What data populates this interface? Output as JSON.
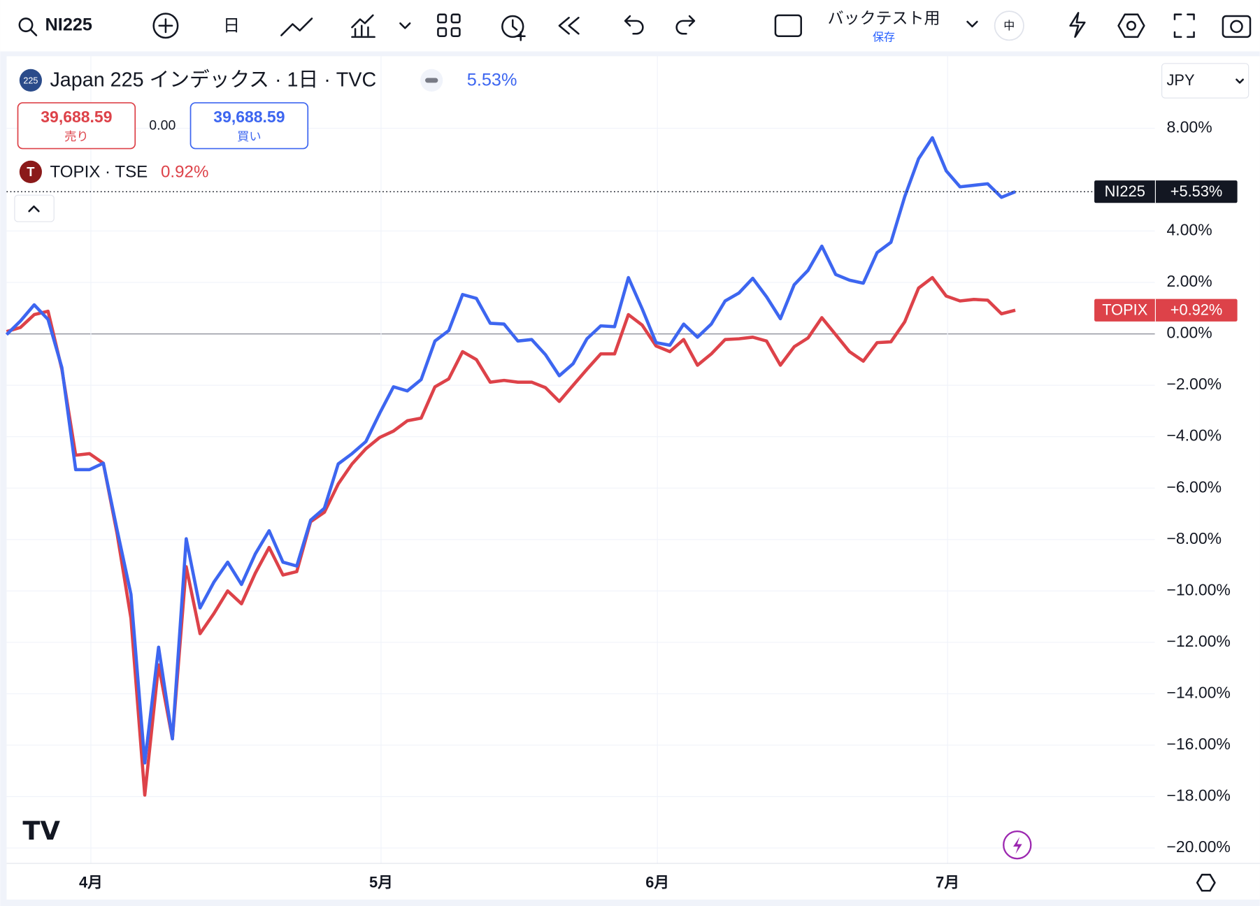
{
  "toolbar": {
    "symbol": "NI225",
    "interval": "日",
    "layout_name": "バックテスト用",
    "layout_sub": "保存",
    "badge": "中"
  },
  "legend": {
    "badge": "225",
    "main_title": "Japan 225 インデックス · 1日 · TVC",
    "main_change": "5.53%",
    "sell_price": "39,688.59",
    "sell_label": "売り",
    "spread": "0.00",
    "buy_price": "39,688.59",
    "buy_label": "買い",
    "compare_badge": "T",
    "compare_title": "TOPIX · TSE",
    "compare_change": "0.92%"
  },
  "currency": "JPY",
  "price_tags": [
    {
      "name": "NI225",
      "value": "+5.53%"
    },
    {
      "name": "TOPIX",
      "value": "+0.92%"
    }
  ],
  "chart_data": {
    "type": "line",
    "x": [
      0,
      1,
      2,
      3,
      4,
      5,
      6,
      7,
      8,
      9,
      10,
      11,
      12,
      13,
      14,
      15,
      16,
      17,
      18,
      19,
      20,
      21,
      22,
      23,
      24,
      25,
      26,
      27,
      28,
      29,
      30,
      31,
      32,
      33,
      34,
      35,
      36,
      37,
      38,
      39,
      40,
      41,
      42,
      43,
      44,
      45,
      46,
      47,
      48,
      49,
      50,
      51,
      52,
      53,
      54,
      55,
      56,
      57,
      58,
      59,
      60,
      61,
      62,
      63,
      64,
      65,
      66,
      67,
      68,
      69,
      70,
      71,
      72,
      73
    ],
    "series": [
      {
        "name": "NI225",
        "color": "#3d66f0",
        "values": [
          -0.03,
          0.5,
          1.13,
          0.56,
          -1.31,
          -5.28,
          -5.28,
          -5.03,
          -7.63,
          -10.13,
          -16.69,
          -12.19,
          -15.75,
          -7.97,
          -10.66,
          -9.66,
          -8.88,
          -9.75,
          -8.56,
          -7.66,
          -8.88,
          -9.03,
          -7.25,
          -6.78,
          -5.06,
          -4.66,
          -4.19,
          -3.09,
          -2.06,
          -2.22,
          -1.78,
          -0.28,
          0.13,
          1.53,
          1.38,
          0.41,
          0.38,
          -0.28,
          -0.22,
          -0.81,
          -1.63,
          -1.16,
          -0.19,
          0.31,
          0.28,
          2.19,
          0.97,
          -0.34,
          -0.44,
          0.38,
          -0.13,
          0.38,
          1.28,
          1.59,
          2.16,
          1.44,
          0.59,
          1.91,
          2.47,
          3.41,
          2.31,
          2.09,
          1.97,
          3.16,
          3.56,
          5.34,
          6.81,
          7.63,
          6.34,
          5.72,
          5.78,
          5.84,
          5.31,
          5.53
        ]
      },
      {
        "name": "TOPIX",
        "color": "#dd4249",
        "values": [
          0.09,
          0.25,
          0.75,
          0.88,
          -1.38,
          -4.72,
          -4.66,
          -5.03,
          -7.78,
          -11.06,
          -17.94,
          -12.88,
          -15.75,
          -9.06,
          -11.66,
          -10.88,
          -10.0,
          -10.5,
          -9.31,
          -8.31,
          -9.38,
          -9.25,
          -7.31,
          -6.94,
          -5.84,
          -5.06,
          -4.47,
          -4.03,
          -3.78,
          -3.38,
          -3.28,
          -2.06,
          -1.75,
          -0.69,
          -1.0,
          -1.88,
          -1.81,
          -1.88,
          -1.88,
          -2.09,
          -2.63,
          -2.0,
          -1.38,
          -0.78,
          -0.78,
          0.75,
          0.34,
          -0.47,
          -0.69,
          -0.22,
          -1.22,
          -0.78,
          -0.22,
          -0.19,
          -0.13,
          -0.28,
          -1.22,
          -0.5,
          -0.16,
          0.63,
          -0.03,
          -0.69,
          -1.06,
          -0.34,
          -0.31,
          0.47,
          1.78,
          2.19,
          1.47,
          1.28,
          1.34,
          1.31,
          0.78,
          0.92
        ]
      }
    ],
    "xlim": [
      0,
      83.1
    ],
    "xticks": [
      {
        "value": 6.1,
        "label": "4月"
      },
      {
        "value": 27.1,
        "label": "5月"
      },
      {
        "value": 47.1,
        "label": "6月"
      },
      {
        "value": 68.1,
        "label": "7月"
      }
    ],
    "ylim": [
      -20.6,
      10.8
    ],
    "yticks": [
      {
        "value": -20,
        "label": "−20.00%"
      },
      {
        "value": -18,
        "label": "−18.00%"
      },
      {
        "value": -16,
        "label": "−16.00%"
      },
      {
        "value": -14,
        "label": "−14.00%"
      },
      {
        "value": -12,
        "label": "−12.00%"
      },
      {
        "value": -10,
        "label": "−10.00%"
      },
      {
        "value": -8,
        "label": "−8.00%"
      },
      {
        "value": -6,
        "label": "−6.00%"
      },
      {
        "value": -4,
        "label": "−4.00%"
      },
      {
        "value": -2,
        "label": "−2.00%"
      },
      {
        "value": 0,
        "label": "0.00%"
      },
      {
        "value": 2,
        "label": "2.00%"
      },
      {
        "value": 4,
        "label": "4.00%"
      },
      {
        "value": 8,
        "label": "8.00%"
      }
    ],
    "grid": true
  }
}
